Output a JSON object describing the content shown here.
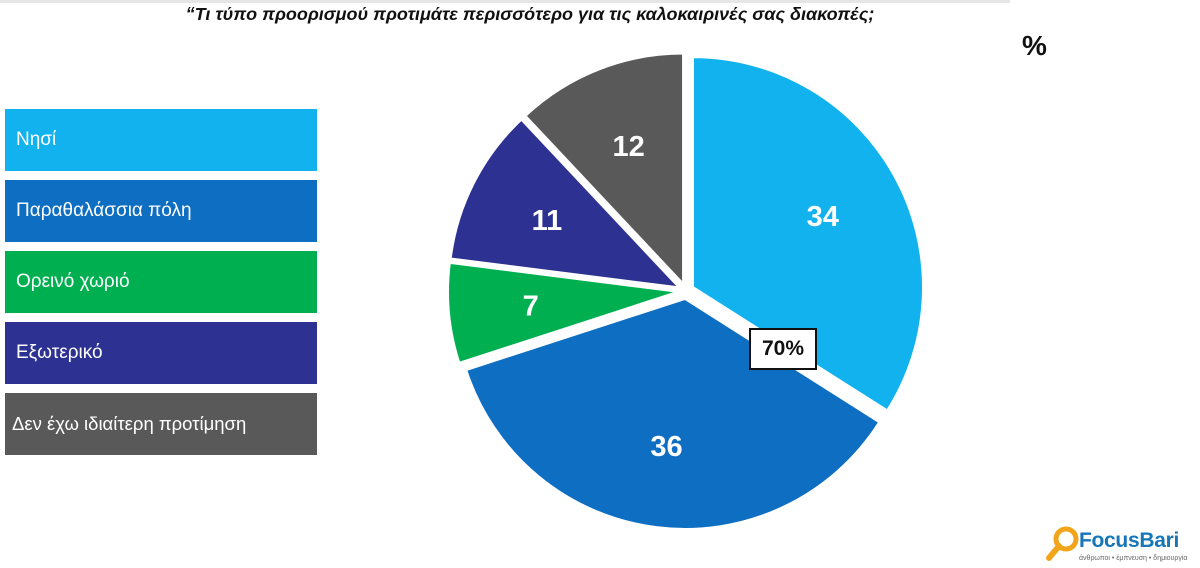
{
  "chart_data": {
    "type": "pie",
    "title": "“Τι τύπο προορισμού προτιμάτε περισσότερο για τις καλοκαιρινές σας διακοπές;",
    "unit_label": "%",
    "categories": [
      "Νησί",
      "Παραθαλάσσια πόλη",
      "Ορεινό χωριό",
      "Εξωτερικό",
      "Δεν έχω ιδιαίτερη προτίμηση"
    ],
    "values": [
      34,
      36,
      7,
      11,
      12
    ],
    "colors": [
      "#12b2ef",
      "#0d6ec2",
      "#00b050",
      "#2c3192",
      "#595959"
    ],
    "annotation": "70%",
    "legend_position": "left"
  },
  "logo": {
    "name": "FocusBari",
    "tagline": "άνθρωποι • έμπνευση • δημιουργία",
    "colors": {
      "primary": "#1676b8",
      "accent": "#f2a51a"
    }
  }
}
